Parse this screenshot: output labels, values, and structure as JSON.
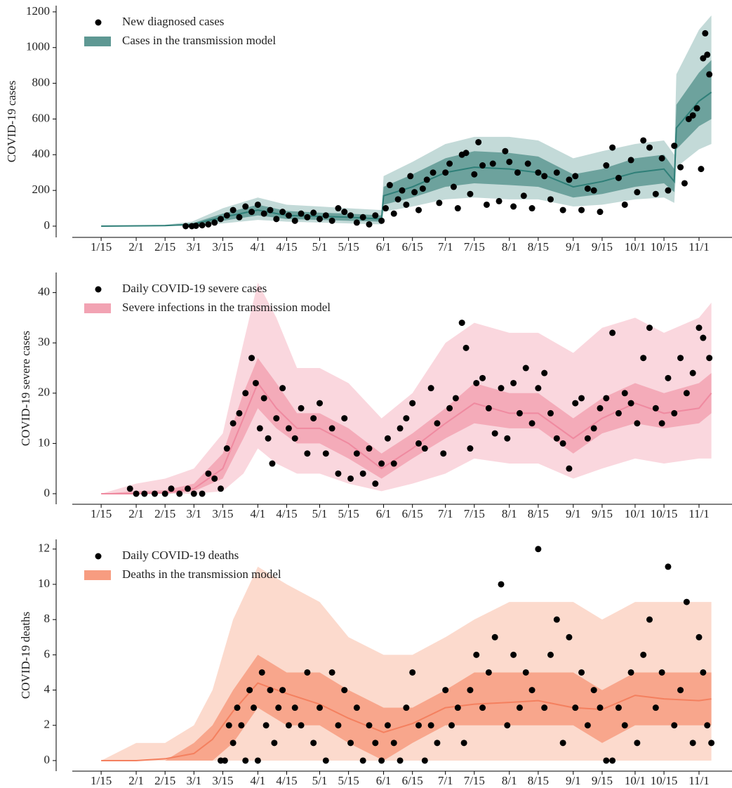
{
  "chart_data": [
    {
      "type": "scatter",
      "y_label": "COVID-19 cases",
      "xlim": [
        "1/1",
        "11/17"
      ],
      "xticks": [
        "1/15",
        "2/1",
        "2/15",
        "3/1",
        "3/15",
        "4/1",
        "4/15",
        "5/1",
        "5/15",
        "6/1",
        "6/15",
        "7/1",
        "7/15",
        "8/1",
        "8/15",
        "9/1",
        "9/15",
        "10/1",
        "10/15",
        "11/1"
      ],
      "ylim": [
        -63,
        1235
      ],
      "yticks": [
        0,
        200,
        400,
        600,
        800,
        1000,
        1200
      ],
      "points": {
        "name": "New diagnosed cases",
        "color": "#000000",
        "x": [
          "2/25",
          "2/28",
          "3/2",
          "3/5",
          "3/8",
          "3/11",
          "3/14",
          "3/17",
          "3/20",
          "3/23",
          "3/26",
          "3/29",
          "4/1",
          "4/4",
          "4/7",
          "4/10",
          "4/13",
          "4/16",
          "4/19",
          "4/22",
          "4/25",
          "4/28",
          "5/1",
          "5/4",
          "5/7",
          "5/10",
          "5/13",
          "5/16",
          "5/19",
          "5/22",
          "5/25",
          "5/28",
          "5/31",
          "6/2",
          "6/4",
          "6/6",
          "6/8",
          "6/10",
          "6/12",
          "6/14",
          "6/16",
          "6/18",
          "6/20",
          "6/22",
          "6/25",
          "6/28",
          "7/1",
          "7/3",
          "7/5",
          "7/7",
          "7/9",
          "7/11",
          "7/13",
          "7/15",
          "7/17",
          "7/19",
          "7/21",
          "7/24",
          "7/27",
          "7/30",
          "8/1",
          "8/3",
          "8/5",
          "8/8",
          "8/10",
          "8/12",
          "8/15",
          "8/18",
          "8/21",
          "8/24",
          "8/27",
          "8/30",
          "9/2",
          "9/5",
          "9/8",
          "9/11",
          "9/14",
          "9/17",
          "9/20",
          "9/23",
          "9/26",
          "9/29",
          "10/2",
          "10/5",
          "10/8",
          "10/11",
          "10/14",
          "10/17",
          "10/20",
          "10/23",
          "10/25",
          "10/27",
          "10/29",
          "10/31",
          "11/2",
          "11/3",
          "11/4",
          "11/5",
          "11/6"
        ],
        "values": [
          0,
          0,
          2,
          5,
          10,
          20,
          40,
          60,
          90,
          50,
          110,
          80,
          120,
          70,
          90,
          40,
          80,
          60,
          30,
          70,
          50,
          75,
          40,
          60,
          30,
          100,
          80,
          60,
          20,
          50,
          10,
          60,
          30,
          100,
          230,
          70,
          150,
          200,
          120,
          280,
          190,
          90,
          210,
          260,
          300,
          130,
          300,
          350,
          220,
          100,
          400,
          410,
          180,
          290,
          470,
          340,
          120,
          350,
          140,
          420,
          360,
          110,
          300,
          170,
          350,
          100,
          300,
          280,
          150,
          300,
          90,
          260,
          280,
          90,
          210,
          200,
          80,
          340,
          440,
          270,
          120,
          370,
          190,
          480,
          440,
          180,
          380,
          200,
          450,
          330,
          240,
          600,
          620,
          660,
          320,
          940,
          1080,
          960,
          850
        ]
      },
      "model": {
        "name": "Cases in the transmission model",
        "color": "#2f7f78",
        "x": [
          "1/15",
          "2/15",
          "2/28",
          "3/15",
          "4/1",
          "4/15",
          "5/1",
          "5/15",
          "5/31",
          "6/1",
          "6/15",
          "7/1",
          "7/15",
          "8/1",
          "8/15",
          "9/1",
          "9/15",
          "10/1",
          "10/15",
          "10/20",
          "10/21",
          "11/1",
          "11/7"
        ],
        "median": [
          0,
          3,
          10,
          50,
          90,
          60,
          55,
          50,
          40,
          170,
          220,
          300,
          330,
          320,
          300,
          220,
          250,
          300,
          320,
          250,
          550,
          700,
          750
        ],
        "bands": [
          {
            "color": "#b9d4d1",
            "lower": [
              0,
              1,
              2,
              15,
              35,
              25,
              20,
              15,
              10,
              80,
              110,
              150,
              160,
              150,
              150,
              110,
              120,
              150,
              160,
              130,
              330,
              430,
              460
            ],
            "upper": [
              0,
              8,
              25,
              100,
              160,
              120,
              110,
              100,
              90,
              280,
              360,
              460,
              500,
              500,
              480,
              380,
              420,
              460,
              480,
              400,
              850,
              1100,
              1180
            ]
          },
          {
            "color": "#5e9893",
            "lower": [
              0,
              2,
              5,
              30,
              60,
              40,
              35,
              30,
              25,
              120,
              160,
              220,
              240,
              230,
              220,
              160,
              180,
              220,
              240,
              190,
              430,
              560,
              600
            ],
            "upper": [
              0,
              5,
              15,
              70,
              120,
              85,
              75,
              70,
              60,
              220,
              290,
              380,
              420,
              410,
              390,
              290,
              320,
              380,
              400,
              320,
              680,
              860,
              930
            ]
          }
        ]
      }
    },
    {
      "type": "scatter",
      "y_label": "COVID-19 severe cases",
      "xlim": [
        "1/1",
        "11/17"
      ],
      "xticks": [
        "1/15",
        "2/1",
        "2/15",
        "3/1",
        "3/15",
        "4/1",
        "4/15",
        "5/1",
        "5/15",
        "6/1",
        "6/15",
        "7/1",
        "7/15",
        "8/1",
        "8/15",
        "9/1",
        "9/15",
        "10/1",
        "10/15",
        "11/1"
      ],
      "ylim": [
        -2.1,
        44
      ],
      "yticks": [
        0,
        10,
        20,
        30,
        40
      ],
      "points": {
        "name": "Daily COVID-19 severe cases",
        "color": "#000000",
        "x": [
          "1/29",
          "2/1",
          "2/5",
          "2/10",
          "2/15",
          "2/18",
          "2/22",
          "2/26",
          "3/1",
          "3/5",
          "3/8",
          "3/11",
          "3/14",
          "3/17",
          "3/20",
          "3/23",
          "3/26",
          "3/29",
          "3/31",
          "4/2",
          "4/4",
          "4/6",
          "4/8",
          "4/10",
          "4/13",
          "4/16",
          "4/19",
          "4/22",
          "4/25",
          "4/28",
          "5/1",
          "5/4",
          "5/7",
          "5/10",
          "5/13",
          "5/16",
          "5/19",
          "5/22",
          "5/25",
          "5/28",
          "5/31",
          "6/3",
          "6/6",
          "6/9",
          "6/12",
          "6/15",
          "6/18",
          "6/21",
          "6/24",
          "6/27",
          "6/30",
          "7/3",
          "7/6",
          "7/9",
          "7/11",
          "7/13",
          "7/16",
          "7/19",
          "7/22",
          "7/25",
          "7/28",
          "7/31",
          "8/3",
          "8/6",
          "8/9",
          "8/12",
          "8/15",
          "8/18",
          "8/21",
          "8/24",
          "8/27",
          "8/30",
          "9/2",
          "9/5",
          "9/8",
          "9/11",
          "9/14",
          "9/17",
          "9/20",
          "9/23",
          "9/26",
          "9/29",
          "10/2",
          "10/5",
          "10/8",
          "10/11",
          "10/14",
          "10/17",
          "10/20",
          "10/23",
          "10/26",
          "10/29",
          "11/1",
          "11/3",
          "11/6"
        ],
        "values": [
          1,
          0,
          0,
          0,
          0,
          1,
          0,
          1,
          0,
          0,
          4,
          3,
          1,
          9,
          14,
          16,
          20,
          27,
          22,
          13,
          19,
          11,
          6,
          15,
          21,
          13,
          11,
          17,
          8,
          15,
          18,
          8,
          13,
          4,
          15,
          3,
          8,
          4,
          9,
          2,
          6,
          11,
          6,
          13,
          15,
          18,
          10,
          9,
          21,
          14,
          8,
          17,
          19,
          34,
          29,
          9,
          22,
          23,
          17,
          12,
          21,
          11,
          22,
          16,
          25,
          14,
          21,
          24,
          16,
          11,
          10,
          5,
          18,
          19,
          11,
          13,
          17,
          19,
          32,
          16,
          20,
          18,
          14,
          27,
          33,
          17,
          14,
          23,
          16,
          27,
          20,
          24,
          33,
          31,
          27
        ]
      },
      "model": {
        "name": "Severe infections in the transmission model",
        "color": "#ef8aa0",
        "x": [
          "1/15",
          "2/1",
          "2/15",
          "3/1",
          "3/15",
          "3/25",
          "4/1",
          "4/10",
          "4/20",
          "5/1",
          "5/15",
          "5/31",
          "6/15",
          "7/1",
          "7/15",
          "8/1",
          "8/15",
          "9/1",
          "9/15",
          "10/1",
          "10/15",
          "11/1",
          "11/7"
        ],
        "median": [
          0,
          0,
          0.2,
          1,
          5,
          15,
          22,
          17,
          13,
          13,
          10,
          5,
          9,
          14,
          18,
          16,
          16,
          11,
          15,
          18,
          16,
          17,
          20
        ],
        "bands": [
          {
            "color": "#f9d0d8",
            "lower": [
              0,
              0,
              0,
              0,
              0.5,
              4,
              9,
              6,
              4,
              4,
              2,
              0.5,
              2,
              4,
              7,
              6,
              6,
              3,
              5,
              7,
              6,
              7,
              7
            ],
            "upper": [
              0,
              2,
              3,
              5,
              12,
              30,
              42,
              35,
              25,
              25,
              22,
              15,
              20,
              30,
              34,
              32,
              32,
              28,
              33,
              35,
              32,
              35,
              38
            ]
          },
          {
            "color": "#f2a3b3",
            "lower": [
              0,
              0,
              0,
              0.5,
              3,
              11,
              17,
              13,
              10,
              10,
              7,
              3,
              7,
              11,
              14,
              13,
              13,
              8,
              12,
              14,
              13,
              14,
              16
            ],
            "upper": [
              0,
              0.5,
              0.7,
              2,
              8,
              20,
              27,
              22,
              16,
              16,
              13,
              8,
              12,
              17,
              22,
              20,
              20,
              15,
              19,
              22,
              20,
              22,
              24
            ]
          }
        ]
      }
    },
    {
      "type": "scatter",
      "y_label": "COVID-19 deaths",
      "xlim": [
        "1/1",
        "11/17"
      ],
      "xticks": [
        "1/15",
        "2/1",
        "2/15",
        "3/1",
        "3/15",
        "4/1",
        "4/15",
        "5/1",
        "5/15",
        "6/1",
        "6/15",
        "7/1",
        "7/15",
        "8/1",
        "8/15",
        "9/1",
        "9/15",
        "10/1",
        "10/15",
        "11/1"
      ],
      "ylim": [
        -0.6,
        12.55
      ],
      "yticks": [
        0,
        2,
        4,
        6,
        8,
        10,
        12
      ],
      "points": {
        "name": "Daily COVID-19 deaths",
        "color": "#000000",
        "x": [
          "3/14",
          "3/16",
          "3/18",
          "3/20",
          "3/22",
          "3/24",
          "3/26",
          "3/28",
          "3/30",
          "4/1",
          "4/3",
          "4/5",
          "4/7",
          "4/9",
          "4/11",
          "4/13",
          "4/16",
          "4/19",
          "4/22",
          "4/25",
          "4/28",
          "5/1",
          "5/4",
          "5/7",
          "5/10",
          "5/13",
          "5/16",
          "5/19",
          "5/22",
          "5/25",
          "5/28",
          "5/31",
          "6/3",
          "6/6",
          "6/9",
          "6/12",
          "6/15",
          "6/18",
          "6/21",
          "6/24",
          "6/27",
          "7/1",
          "7/4",
          "7/7",
          "7/10",
          "7/13",
          "7/16",
          "7/19",
          "7/22",
          "7/25",
          "7/28",
          "7/31",
          "8/3",
          "8/6",
          "8/9",
          "8/12",
          "8/15",
          "8/18",
          "8/21",
          "8/24",
          "8/27",
          "8/30",
          "9/2",
          "9/5",
          "9/8",
          "9/11",
          "9/14",
          "9/17",
          "9/20",
          "9/23",
          "9/26",
          "9/29",
          "10/2",
          "10/5",
          "10/8",
          "10/11",
          "10/14",
          "10/17",
          "10/20",
          "10/23",
          "10/26",
          "10/29",
          "11/1",
          "11/3",
          "11/5",
          "11/7"
        ],
        "values": [
          0,
          0,
          2,
          1,
          3,
          2,
          0,
          4,
          3,
          0,
          5,
          2,
          4,
          1,
          3,
          4,
          2,
          3,
          2,
          5,
          1,
          3,
          0,
          5,
          2,
          4,
          1,
          3,
          0,
          2,
          1,
          0,
          2,
          1,
          0,
          3,
          5,
          2,
          0,
          2,
          1,
          4,
          2,
          3,
          1,
          4,
          6,
          3,
          5,
          7,
          10,
          2,
          6,
          3,
          5,
          4,
          12,
          3,
          6,
          8,
          1,
          7,
          3,
          5,
          2,
          4,
          3,
          0,
          0,
          3,
          2,
          5,
          1,
          6,
          8,
          3,
          5,
          11,
          2,
          4,
          9,
          1,
          7,
          5,
          2,
          1
        ]
      },
      "model": {
        "name": "Deaths in the transmission model",
        "color": "#f4805f",
        "x": [
          "1/15",
          "2/1",
          "2/15",
          "3/1",
          "3/10",
          "3/20",
          "4/1",
          "4/15",
          "5/1",
          "5/15",
          "6/1",
          "6/15",
          "7/1",
          "7/15",
          "8/1",
          "8/15",
          "9/1",
          "9/15",
          "10/1",
          "10/15",
          "11/1",
          "11/7"
        ],
        "median": [
          0,
          0,
          0.1,
          0.4,
          1.2,
          2.8,
          4.4,
          3.8,
          3.2,
          2.4,
          1.6,
          2.1,
          3,
          3.2,
          3.3,
          3.4,
          3,
          2.9,
          3.7,
          3.5,
          3.4,
          3.5
        ],
        "bands": [
          {
            "color": "#fcd3c4",
            "lower": [
              0,
              0,
              0,
              0,
              0,
              0,
              0,
              0,
              0,
              0,
              0,
              0,
              0,
              0,
              0,
              0,
              0,
              0,
              0,
              0,
              0,
              0
            ],
            "upper": [
              0,
              1,
              1,
              2,
              4,
              8,
              11,
              10,
              9,
              7,
              6,
              6,
              7,
              8,
              9,
              9,
              9,
              8,
              9,
              9,
              9,
              9
            ]
          },
          {
            "color": "#f79c80",
            "lower": [
              0,
              0,
              0,
              0,
              0,
              1,
              3,
              2,
              2,
              1,
              0,
              1,
              2,
              2,
              2,
              2,
              2,
              1,
              2,
              2,
              2,
              2
            ],
            "upper": [
              0,
              0,
              0,
              1,
              2,
              4,
              6,
              5,
              5,
              4,
              3,
              3,
              4,
              5,
              5,
              5,
              5,
              4,
              5,
              5,
              5,
              5
            ]
          }
        ]
      }
    }
  ]
}
